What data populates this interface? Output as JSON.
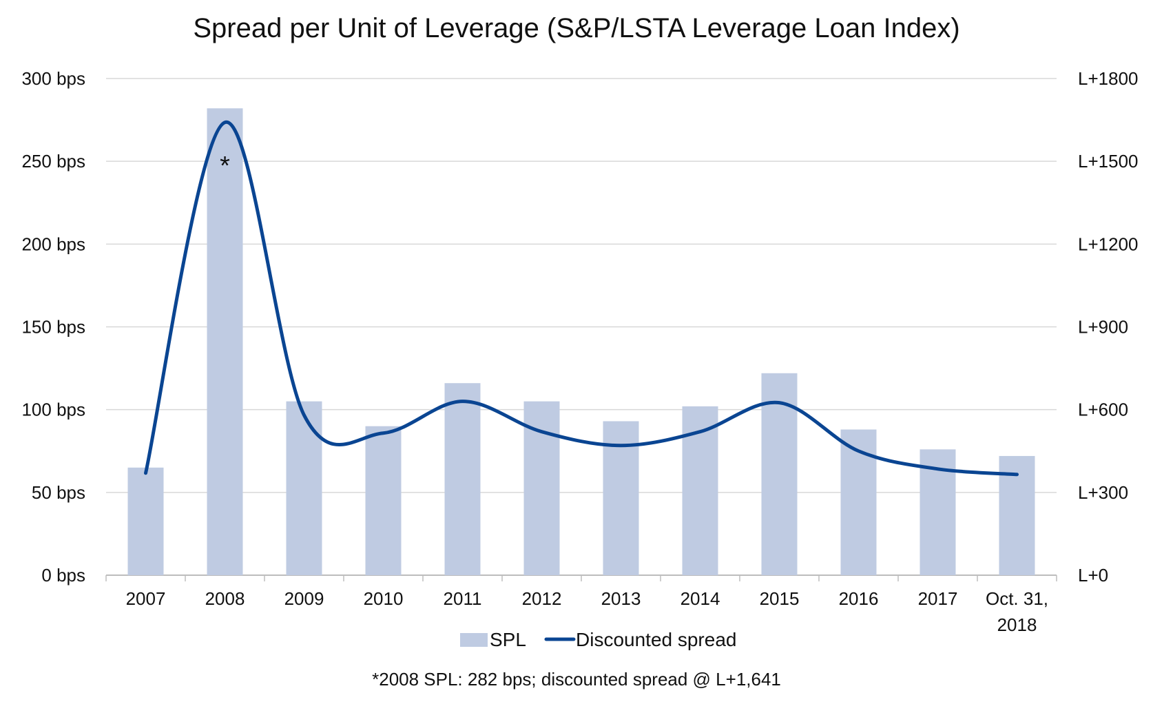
{
  "chart_data": {
    "type": "bar",
    "title": "Spread per Unit of Leverage (S&P/LSTA Leverage Loan Index)",
    "categories": [
      "2007",
      "2008",
      "2009",
      "2010",
      "2011",
      "2012",
      "2013",
      "2014",
      "2015",
      "2016",
      "2017",
      "Oct. 31, 2018"
    ],
    "series": [
      {
        "name": "SPL",
        "type": "bar",
        "axis": "left",
        "color": "#bfcbe2",
        "values": [
          65,
          282,
          105,
          90,
          116,
          105,
          93,
          102,
          122,
          88,
          76,
          72
        ]
      },
      {
        "name": "Discounted spread",
        "type": "line",
        "axis": "right",
        "color": "#0a4592",
        "values": [
          370,
          1641,
          580,
          515,
          630,
          520,
          470,
          520,
          625,
          450,
          385,
          365
        ]
      }
    ],
    "left_axis": {
      "ylim": [
        0,
        300
      ],
      "ticks": [
        0,
        50,
        100,
        150,
        200,
        250,
        300
      ],
      "tick_labels": [
        "0 bps",
        "50 bps",
        "100 bps",
        "150 bps",
        "200 bps",
        "250 bps",
        "300 bps"
      ]
    },
    "right_axis": {
      "ylim": [
        0,
        1800
      ],
      "ticks": [
        0,
        300,
        600,
        900,
        1200,
        1500,
        1800
      ],
      "tick_labels": [
        "L+0",
        "L+300",
        "L+600",
        "L+900",
        "L+1200",
        "L+1500",
        "L+1800"
      ]
    },
    "grid": true,
    "legend_position": "bottom-center",
    "annotation": {
      "text": "*",
      "category": "2008"
    },
    "footnote": "*2008 SPL: 282 bps; discounted spread @ L+1,641"
  }
}
